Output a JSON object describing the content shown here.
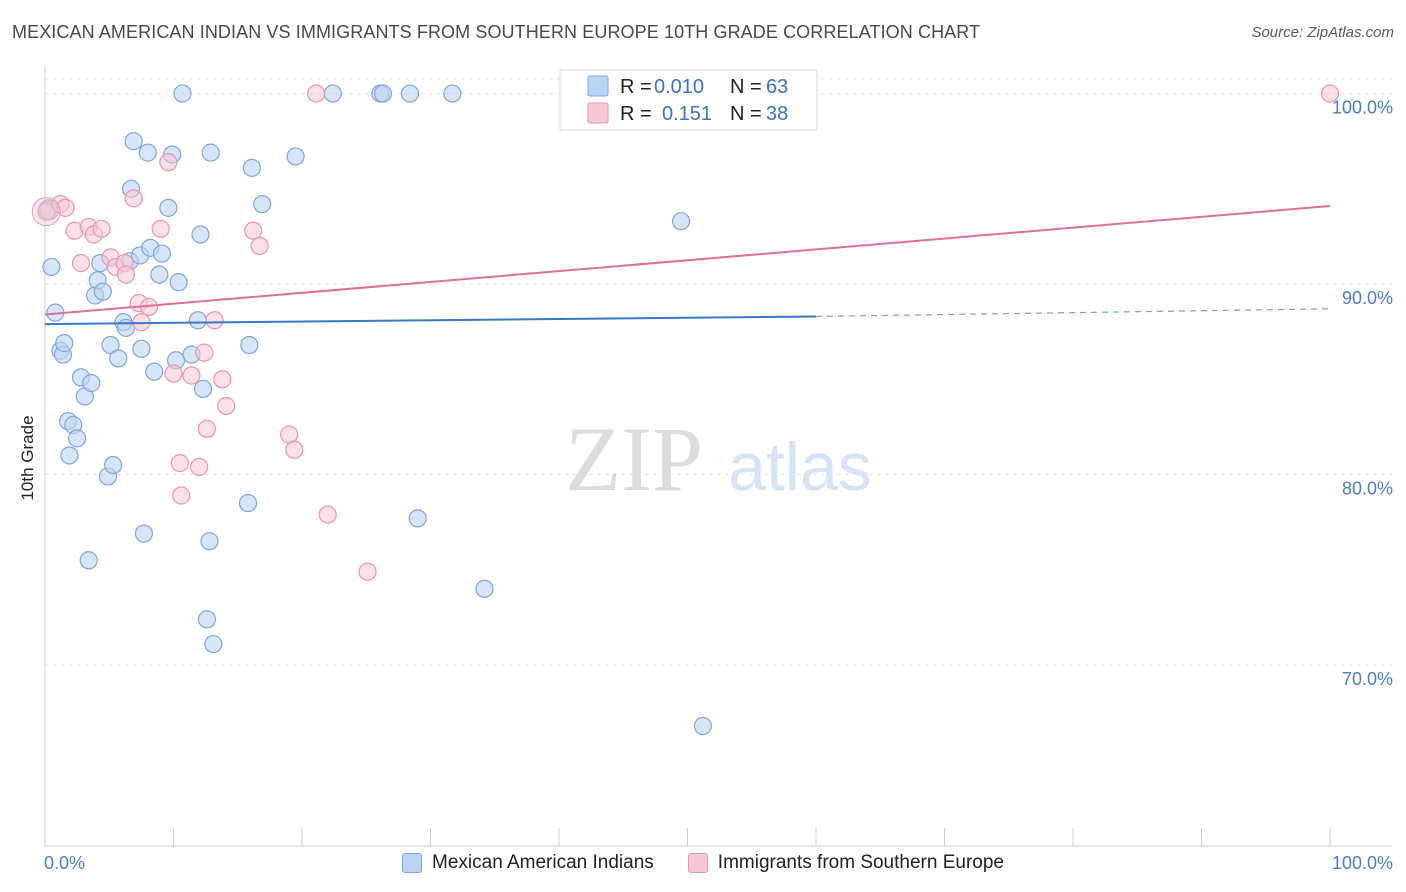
{
  "header": {
    "title": "MEXICAN AMERICAN INDIAN VS IMMIGRANTS FROM SOUTHERN EUROPE 10TH GRADE CORRELATION CHART",
    "source": "Source: ZipAtlas.com"
  },
  "watermark": {
    "zip": "ZIP",
    "atlas": "atlas"
  },
  "colors": {
    "blue_fill": "#bcd4f3",
    "blue_stroke": "#7fa7dc",
    "blue_line": "#3a78c9",
    "pink_fill": "#f8c6d5",
    "pink_stroke": "#e896b0",
    "pink_line": "#e06f96",
    "grid": "#e2e2e2",
    "axis_text": "#4a7fc8"
  },
  "stats_legend": [
    {
      "r_label": "R =",
      "r_value": "0.010",
      "n_label": "N =",
      "n_value": "63"
    },
    {
      "r_label": "R =",
      "r_value": "0.151",
      "n_label": "N =",
      "n_value": "38"
    }
  ],
  "bottom_legend": [
    {
      "label": "Mexican American Indians"
    },
    {
      "label": "Immigrants from Southern Europe"
    }
  ],
  "chart_data": {
    "type": "scatter",
    "title": "MEXICAN AMERICAN INDIAN VS IMMIGRANTS FROM SOUTHERN EUROPE 10TH GRADE CORRELATION CHART",
    "xlabel": "",
    "ylabel": "10th Grade",
    "xlim": [
      0,
      100
    ],
    "ylim": [
      60.5,
      101.5
    ],
    "x_tick_labels": [
      "0.0%",
      "100.0%"
    ],
    "y_ticks": [
      70,
      80,
      90,
      100
    ],
    "y_tick_labels": [
      "70.0%",
      "80.0%",
      "90.0%",
      "100.0%"
    ],
    "grid": true,
    "series": [
      {
        "name": "Mexican American Indians",
        "color": "#bcd4f3",
        "trend": {
          "x": [
            0,
            60
          ],
          "y": [
            87.9,
            88.3
          ],
          "dashed_to": [
            100,
            88.7
          ]
        },
        "points": [
          [
            0.3,
            93.9
          ],
          [
            0.5,
            90.9
          ],
          [
            0.8,
            88.5
          ],
          [
            1.2,
            86.5
          ],
          [
            1.4,
            86.3
          ],
          [
            1.5,
            86.9
          ],
          [
            1.8,
            82.8
          ],
          [
            1.9,
            81.0
          ],
          [
            2.2,
            82.6
          ],
          [
            2.5,
            81.9
          ],
          [
            2.8,
            85.1
          ],
          [
            3.1,
            84.1
          ],
          [
            3.4,
            75.5
          ],
          [
            3.6,
            84.8
          ],
          [
            3.9,
            89.4
          ],
          [
            4.1,
            90.2
          ],
          [
            4.3,
            91.1
          ],
          [
            4.5,
            89.6
          ],
          [
            4.9,
            79.9
          ],
          [
            5.1,
            86.8
          ],
          [
            5.3,
            80.5
          ],
          [
            5.7,
            86.1
          ],
          [
            6.1,
            88.0
          ],
          [
            6.3,
            87.7
          ],
          [
            6.6,
            91.2
          ],
          [
            6.7,
            95.0
          ],
          [
            6.9,
            97.5
          ],
          [
            7.4,
            91.5
          ],
          [
            7.5,
            86.6
          ],
          [
            7.7,
            76.9
          ],
          [
            8.0,
            96.9
          ],
          [
            8.2,
            91.9
          ],
          [
            8.5,
            85.4
          ],
          [
            8.9,
            90.5
          ],
          [
            9.1,
            91.6
          ],
          [
            9.6,
            94.0
          ],
          [
            9.9,
            96.8
          ],
          [
            10.2,
            86.0
          ],
          [
            10.4,
            90.1
          ],
          [
            10.7,
            100.0
          ],
          [
            11.4,
            86.3
          ],
          [
            11.9,
            88.1
          ],
          [
            12.1,
            92.6
          ],
          [
            12.3,
            84.5
          ],
          [
            12.6,
            72.4
          ],
          [
            12.8,
            76.5
          ],
          [
            12.9,
            96.9
          ],
          [
            13.1,
            71.1
          ],
          [
            15.8,
            78.5
          ],
          [
            15.9,
            86.8
          ],
          [
            16.1,
            96.1
          ],
          [
            16.9,
            94.2
          ],
          [
            19.5,
            96.7
          ],
          [
            22.4,
            100.0
          ],
          [
            26.1,
            100.0
          ],
          [
            26.3,
            100.0
          ],
          [
            28.4,
            100.0
          ],
          [
            29.0,
            77.7
          ],
          [
            31.7,
            100.0
          ],
          [
            34.2,
            74.0
          ],
          [
            49.5,
            93.3
          ],
          [
            51.2,
            66.8
          ]
        ]
      },
      {
        "name": "Immigrants from Southern Europe",
        "color": "#f8c6d5",
        "trend": {
          "x": [
            0,
            100
          ],
          "y": [
            88.4,
            94.1
          ]
        },
        "points": [
          [
            0.1,
            93.8
          ],
          [
            1.2,
            94.2
          ],
          [
            1.6,
            94.0
          ],
          [
            2.3,
            92.8
          ],
          [
            2.8,
            91.1
          ],
          [
            3.4,
            93.0
          ],
          [
            3.8,
            92.6
          ],
          [
            4.4,
            92.9
          ],
          [
            5.1,
            91.4
          ],
          [
            5.5,
            90.9
          ],
          [
            6.2,
            91.1
          ],
          [
            6.3,
            90.5
          ],
          [
            6.9,
            94.5
          ],
          [
            7.3,
            89.0
          ],
          [
            7.5,
            88.0
          ],
          [
            8.1,
            88.8
          ],
          [
            9.0,
            92.9
          ],
          [
            9.6,
            96.4
          ],
          [
            10.0,
            85.3
          ],
          [
            10.5,
            80.6
          ],
          [
            10.6,
            78.9
          ],
          [
            11.4,
            85.2
          ],
          [
            12.0,
            80.4
          ],
          [
            12.4,
            86.4
          ],
          [
            12.6,
            82.4
          ],
          [
            13.2,
            88.1
          ],
          [
            13.8,
            85.0
          ],
          [
            14.1,
            83.6
          ],
          [
            16.2,
            92.8
          ],
          [
            16.7,
            92.0
          ],
          [
            19.0,
            82.1
          ],
          [
            19.4,
            81.3
          ],
          [
            21.1,
            100.0
          ],
          [
            22.0,
            77.9
          ],
          [
            25.1,
            74.9
          ],
          [
            100.0,
            100.0
          ]
        ]
      }
    ]
  }
}
